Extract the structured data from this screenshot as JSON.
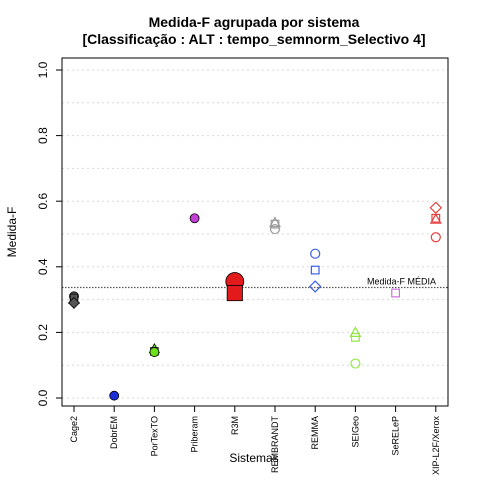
{
  "chart_data": {
    "type": "scatter",
    "title_line1": "Medida-F agrupada por sistema",
    "title_line2": "[Classificação : ALT : tempo_semnorm_Selectivo 4]",
    "xlabel": "Sistemas",
    "ylabel": "Medida-F",
    "ylim": [
      0,
      1
    ],
    "yticks": [
      "0.0",
      "0.2",
      "0.4",
      "0.6",
      "0.8",
      "1.0"
    ],
    "grid": true,
    "categories": [
      "Cage2",
      "DobrEM",
      "PorTexTO",
      "Priberam",
      "R3M",
      "REMBRANDT",
      "REMMA",
      "SEIGeo",
      "SeRELeP",
      "XIP-L2F/Xerox"
    ],
    "reference_line": {
      "value": 0.337,
      "label": "Medida-F MÉDIA"
    },
    "points": [
      {
        "category": "Cage2",
        "y": 0.31,
        "shape": "circle",
        "color": "#555555",
        "fill": true,
        "size": "small"
      },
      {
        "category": "Cage2",
        "y": 0.3,
        "shape": "triangle",
        "color": "#555555",
        "fill": true,
        "size": "small"
      },
      {
        "category": "Cage2",
        "y": 0.305,
        "shape": "square",
        "color": "#555555",
        "fill": true,
        "size": "small"
      },
      {
        "category": "Cage2",
        "y": 0.29,
        "shape": "diamond",
        "color": "#555555",
        "fill": true,
        "size": "small"
      },
      {
        "category": "DobrEM",
        "y": 0.007,
        "shape": "circle",
        "color": "#1a2fd8",
        "fill": true,
        "size": "small"
      },
      {
        "category": "PorTexTO",
        "y": 0.15,
        "shape": "triangle",
        "color": "#6be11a",
        "fill": true,
        "size": "small"
      },
      {
        "category": "PorTexTO",
        "y": 0.142,
        "shape": "square",
        "color": "#6be11a",
        "fill": true,
        "size": "small"
      },
      {
        "category": "PorTexTO",
        "y": 0.14,
        "shape": "circle",
        "color": "#6be11a",
        "fill": true,
        "size": "small"
      },
      {
        "category": "Priberam",
        "y": 0.548,
        "shape": "circle",
        "color": "#c43fd8",
        "fill": true,
        "size": "small"
      },
      {
        "category": "R3M",
        "y": 0.355,
        "shape": "circle",
        "color": "#e31a1c",
        "fill": true,
        "size": "large"
      },
      {
        "category": "R3M",
        "y": 0.32,
        "shape": "square",
        "color": "#e31a1c",
        "fill": true,
        "size": "large"
      },
      {
        "category": "REMBRANDT",
        "y": 0.535,
        "shape": "triangle",
        "color": "#999999",
        "fill": false,
        "size": "small"
      },
      {
        "category": "REMBRANDT",
        "y": 0.53,
        "shape": "square",
        "color": "#999999",
        "fill": false,
        "size": "small"
      },
      {
        "category": "REMBRANDT",
        "y": 0.515,
        "shape": "circle",
        "color": "#999999",
        "fill": false,
        "size": "small"
      },
      {
        "category": "REMMA",
        "y": 0.44,
        "shape": "circle",
        "color": "#3a5fe8",
        "fill": false,
        "size": "small"
      },
      {
        "category": "REMMA",
        "y": 0.39,
        "shape": "square",
        "color": "#3a5fe8",
        "fill": false,
        "size": "small"
      },
      {
        "category": "REMMA",
        "y": 0.34,
        "shape": "diamond",
        "color": "#3a5fe8",
        "fill": false,
        "size": "small"
      },
      {
        "category": "SEIGeo",
        "y": 0.2,
        "shape": "triangle",
        "color": "#90e840",
        "fill": false,
        "size": "small"
      },
      {
        "category": "SEIGeo",
        "y": 0.185,
        "shape": "square",
        "color": "#90e840",
        "fill": false,
        "size": "small"
      },
      {
        "category": "SEIGeo",
        "y": 0.105,
        "shape": "circle",
        "color": "#90e840",
        "fill": false,
        "size": "small"
      },
      {
        "category": "SeRELeP",
        "y": 0.32,
        "shape": "square",
        "color": "#d070e0",
        "fill": false,
        "size": "small"
      },
      {
        "category": "XIP-L2F/Xerox",
        "y": 0.58,
        "shape": "diamond",
        "color": "#e84040",
        "fill": false,
        "size": "small"
      },
      {
        "category": "XIP-L2F/Xerox",
        "y": 0.548,
        "shape": "square",
        "color": "#e84040",
        "fill": false,
        "size": "small"
      },
      {
        "category": "XIP-L2F/Xerox",
        "y": 0.545,
        "shape": "triangle",
        "color": "#e84040",
        "fill": false,
        "size": "small"
      },
      {
        "category": "XIP-L2F/Xerox",
        "y": 0.49,
        "shape": "circle",
        "color": "#e84040",
        "fill": false,
        "size": "small"
      }
    ]
  }
}
